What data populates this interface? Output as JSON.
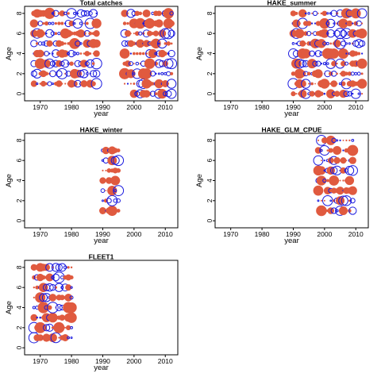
{
  "colors": {
    "positive": "#e05a3f",
    "negative": "#1a1adf",
    "frame": "#000000"
  },
  "chart_data": [
    {
      "type": "scatter",
      "title": "Total catches",
      "xlabel": "year",
      "ylabel": "Age",
      "xlim": [
        1965,
        2014
      ],
      "ylim": [
        -0.7,
        8.7
      ],
      "xticks": [
        1970,
        1980,
        1990,
        2000,
        2010
      ],
      "yticks": [
        0,
        2,
        4,
        6,
        8
      ],
      "bubble_encoding": "filled red = positive residual, open blue = negative residual",
      "year_ranges": [
        [
          1968,
          1988
        ],
        [
          1997,
          2012
        ]
      ],
      "ages": [
        1,
        2,
        3,
        4,
        5,
        6,
        7,
        8,
        0
      ],
      "notes": "Age 0 only observed 2000-2012"
    },
    {
      "type": "scatter",
      "title": "HAKE_summer",
      "xlabel": "year",
      "ylabel": "Age",
      "xlim": [
        1965,
        2014
      ],
      "ylim": [
        -0.7,
        8.7
      ],
      "xticks": [
        1970,
        1980,
        1990,
        2000,
        2010
      ],
      "yticks": [
        0,
        2,
        4,
        6,
        8
      ],
      "year_ranges": [
        [
          1990,
          2012
        ]
      ],
      "ages": [
        0,
        1,
        2,
        3,
        4,
        5,
        6,
        7,
        8
      ]
    },
    {
      "type": "scatter",
      "title": "HAKE_winter",
      "xlabel": "year",
      "ylabel": "Age",
      "xlim": [
        1965,
        2014
      ],
      "ylim": [
        -0.7,
        8.7
      ],
      "xticks": [
        1970,
        1980,
        1990,
        2000,
        2010
      ],
      "yticks": [
        0,
        2,
        4,
        6,
        8
      ],
      "year_ranges": [
        [
          1990,
          1995
        ]
      ],
      "ages": [
        1,
        2,
        3,
        4,
        5,
        6,
        7
      ]
    },
    {
      "type": "scatter",
      "title": "HAKE_GLM_CPUE",
      "xlabel": "year",
      "ylabel": "Age",
      "xlim": [
        1965,
        2014
      ],
      "ylim": [
        -0.7,
        8.7
      ],
      "xticks": [
        1970,
        1980,
        1990,
        2000,
        2010
      ],
      "yticks": [
        0,
        2,
        4,
        6,
        8
      ],
      "year_ranges": [
        [
          1998,
          2009
        ]
      ],
      "ages": [
        1,
        2,
        3,
        4,
        5,
        6,
        7,
        8
      ]
    },
    {
      "type": "scatter",
      "title": "FLEET1",
      "xlabel": "year",
      "ylabel": "Age",
      "xlim": [
        1965,
        2014
      ],
      "ylim": [
        -0.7,
        8.7
      ],
      "xticks": [
        1970,
        1980,
        1990,
        2000,
        2010
      ],
      "yticks": [
        0,
        2,
        4,
        6,
        8
      ],
      "year_ranges": [
        [
          1968,
          1980
        ]
      ],
      "ages": [
        1,
        2,
        3,
        4,
        5,
        6,
        7,
        8
      ]
    }
  ]
}
